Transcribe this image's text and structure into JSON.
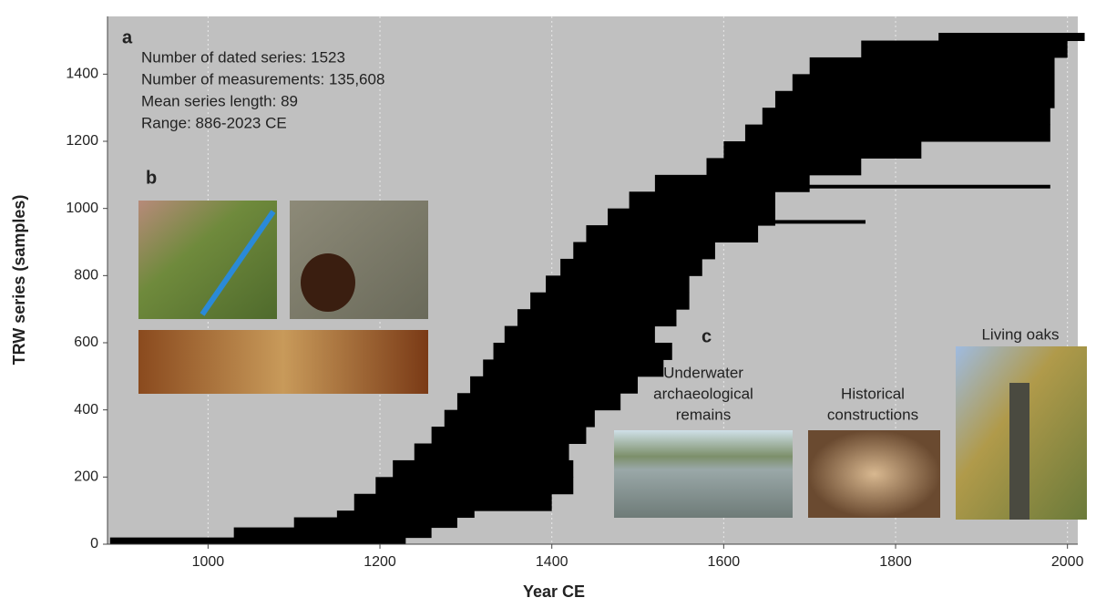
{
  "chart_data": {
    "type": "span",
    "x_label": "Year CE",
    "y_label": "TRW series (samples)",
    "xlim": [
      883,
      2012
    ],
    "xticks": [
      1000,
      1200,
      1400,
      1600,
      1800,
      2000
    ],
    "ylim": [
      0,
      1572
    ],
    "yticks": [
      0,
      200,
      400,
      600,
      800,
      1000,
      1200,
      1400
    ],
    "grid": true,
    "color": "#000000",
    "background": "#c0c0c0",
    "row_bounds": [
      0,
      20,
      50,
      80,
      100,
      150,
      200,
      250,
      300,
      350,
      400,
      450,
      500,
      550,
      600,
      650,
      700,
      750,
      800,
      850,
      900,
      950,
      1000,
      1050,
      1100,
      1150,
      1200,
      1250,
      1300,
      1350,
      1400,
      1450,
      1500,
      1523
    ],
    "start_year": [
      886,
      1030,
      1100,
      1150,
      1170,
      1195,
      1215,
      1240,
      1260,
      1275,
      1290,
      1305,
      1320,
      1332,
      1345,
      1360,
      1375,
      1393,
      1410,
      1425,
      1440,
      1465,
      1490,
      1520,
      1580,
      1600,
      1625,
      1645,
      1660,
      1680,
      1700,
      1760,
      1850
    ],
    "end_year": [
      1230,
      1260,
      1290,
      1310,
      1400,
      1425,
      1425,
      1420,
      1440,
      1450,
      1480,
      1500,
      1530,
      1540,
      1520,
      1545,
      1560,
      1560,
      1575,
      1590,
      1640,
      1660,
      1660,
      1700,
      1760,
      1830,
      1980,
      1980,
      1985,
      1985,
      1985,
      2000,
      2020
    ],
    "long_bars": [
      {
        "sample": 1065,
        "start": 1655,
        "end": 1980
      },
      {
        "sample": 960,
        "start": 1470,
        "end": 1765
      }
    ],
    "panel_a": {
      "label": "a",
      "lines": [
        "Number of dated series: 1523",
        "Number of measurements: 135,608",
        "Mean series length: 89",
        "Range:  886-2023 CE"
      ]
    },
    "panel_b": {
      "label": "b"
    },
    "panel_c": {
      "label": "c",
      "captions": [
        [
          "Underwater",
          "archaeological",
          "remains"
        ],
        [
          "Historical",
          "constructions"
        ],
        [
          "Living oaks"
        ]
      ]
    }
  }
}
